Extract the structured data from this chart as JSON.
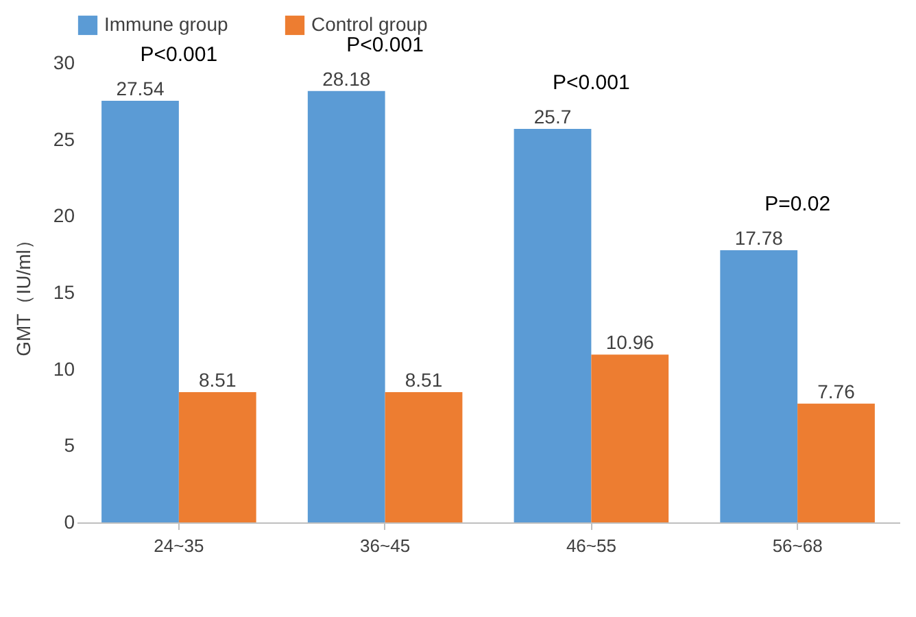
{
  "chart_data": {
    "type": "bar",
    "ylabel": "GMT（IU/ml）",
    "categories": [
      "24~35",
      "36~45",
      "46~55",
      "56~68"
    ],
    "series": [
      {
        "name": "Immune group",
        "color": "#5b9bd5",
        "values": [
          27.54,
          28.18,
          25.7,
          17.78
        ]
      },
      {
        "name": "Control group",
        "color": "#ed7d31",
        "values": [
          8.51,
          8.51,
          10.96,
          7.76
        ]
      }
    ],
    "ylim": [
      0,
      30
    ],
    "yticks": [
      0,
      5,
      10,
      15,
      20,
      25,
      30
    ],
    "grid": false,
    "legend": "top",
    "data_labels": true,
    "annotations": [
      "P<0.001",
      "P<0.001",
      "P<0.001",
      "P=0.02"
    ]
  }
}
